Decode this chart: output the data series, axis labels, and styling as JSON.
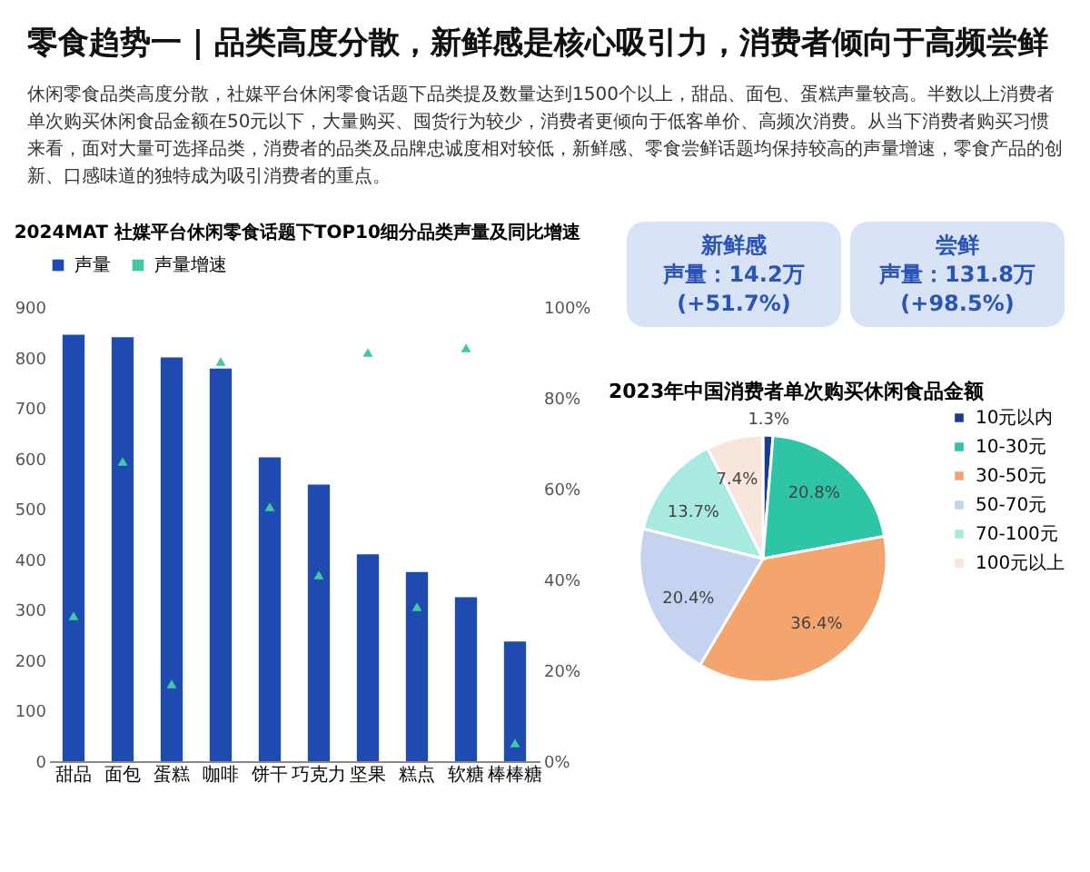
{
  "chart_data": [
    {
      "type": "other",
      "title": "零食趋势一 | 品类高度分散，新鲜感是核心吸引力，消费者倾向于高频尝鲜",
      "subtitle": "休闲零食品类高度分散，社媒平台休闲零食话题下品类提及数量达到1500个以上，甜品、面包、蛋糕声量较高。半数以上消费者单次购买休闲食品金额在50元以下，大量购买、囤货行为较少，消费者更倾向于低客单价、高频次消费。从当下消费者购买习惯来看，面对大量可选择品类，消费者的品类及品牌忠诚度相对较低，新鲜感、零食尝鲜话题均保持较高的声量增速，零食产品的创新、口感味道的独特成为吸引消费者的重点。"
    },
    {
      "type": "bar",
      "title": "2024MAT 社媒平台休闲零食话题下TOP10细分品类声量及同比增速",
      "categories": [
        "甜品",
        "面包",
        "蛋糕",
        "咖啡",
        "饼干",
        "巧克力",
        "坚果",
        "糕点",
        "软糖",
        "棒棒糖"
      ],
      "series": [
        {
          "name": "声量",
          "type": "bar",
          "color": "#1f4bb0",
          "values": [
            845,
            840,
            800,
            778,
            602,
            548,
            410,
            375,
            325,
            237
          ]
        },
        {
          "name": "声量增速",
          "type": "scatter",
          "axis": "y2",
          "color": "#3ec9a7",
          "values": [
            32,
            66,
            17,
            88,
            56,
            41,
            90,
            34,
            91,
            4
          ]
        }
      ],
      "ylim": [
        0,
        900
      ],
      "yticks": [
        0,
        100,
        200,
        300,
        400,
        500,
        600,
        700,
        800,
        900
      ],
      "y2lim": [
        0,
        100
      ],
      "y2ticks": [
        {
          "value": 0,
          "label": "0%"
        },
        {
          "value": 20,
          "label": "20%"
        },
        {
          "value": 40,
          "label": "40%"
        },
        {
          "value": 60,
          "label": "60%"
        },
        {
          "value": 80,
          "label": "80%"
        },
        {
          "value": 100,
          "label": "100%"
        }
      ],
      "legend": "top",
      "marker": "triangle"
    },
    {
      "type": "other",
      "title": "新鲜感",
      "annotations": [
        "声量：14.2万",
        "(+51.7%)"
      ]
    },
    {
      "type": "other",
      "title": "尝鲜",
      "annotations": [
        "声量：131.8万",
        "(+98.5%)"
      ]
    },
    {
      "type": "pie",
      "title": "2023年中国消费者单次购买休闲食品金额",
      "categories": [
        "10元以内",
        "10-30元",
        "30-50元",
        "50-70元",
        "70-100元",
        "100元以上"
      ],
      "values": [
        1.3,
        20.8,
        36.4,
        20.4,
        13.7,
        7.4
      ],
      "colors": [
        "#1a3c8f",
        "#2ec4a6",
        "#f4a56e",
        "#c5d3f0",
        "#a8eadf",
        "#f8e6dc"
      ],
      "value_labels": [
        "1.3%",
        "20.8%",
        "36.4%",
        "20.4%",
        "13.7%",
        "7.4%"
      ],
      "legend": "right"
    }
  ]
}
